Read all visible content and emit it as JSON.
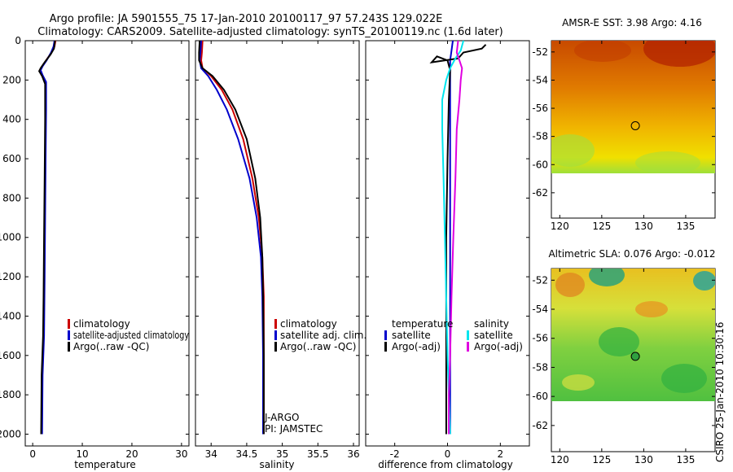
{
  "title_line1": "Argo profile: JA 5901555_75 17-Jan-2010 20100117_97 57.243S 129.022E",
  "title_line2": "Climatology: CARS2009. Satellite-adjusted climatology: synTS_20100119.nc (1.6d later)",
  "credit": "CSIRO 25-Jan-2010 10:30:16",
  "colors": {
    "red": "#cc0000",
    "blue": "#0000cc",
    "black": "#000000",
    "cyan": "#00e5ee",
    "magenta": "#e000e0"
  },
  "chart_data": [
    {
      "id": "temperature",
      "type": "line",
      "xlabel": "temperature",
      "xlim": [
        -1.5,
        31.5
      ],
      "ylim": [
        2060,
        0
      ],
      "xticks": [
        0,
        10,
        20,
        30
      ],
      "yticks": [
        0,
        200,
        400,
        600,
        800,
        1000,
        1200,
        1400,
        1600,
        1800,
        2000
      ],
      "series": [
        {
          "name": "climatology",
          "color": "red",
          "points": [
            [
              4.6,
              0
            ],
            [
              4.4,
              30
            ],
            [
              3.8,
              60
            ],
            [
              2.7,
              100
            ],
            [
              1.9,
              130
            ],
            [
              1.4,
              150
            ],
            [
              1.8,
              175
            ],
            [
              2.6,
              210
            ],
            [
              2.6,
              350
            ],
            [
              2.5,
              600
            ],
            [
              2.4,
              900
            ],
            [
              2.3,
              1200
            ],
            [
              2.2,
              1500
            ],
            [
              1.9,
              1700
            ],
            [
              1.8,
              2000
            ]
          ]
        },
        {
          "name": "satellite-adjusted climatology",
          "color": "blue",
          "points": [
            [
              4.4,
              0
            ],
            [
              4.2,
              30
            ],
            [
              3.7,
              60
            ],
            [
              2.8,
              100
            ],
            [
              2.0,
              130
            ],
            [
              1.6,
              150
            ],
            [
              2.0,
              175
            ],
            [
              2.7,
              210
            ],
            [
              2.7,
              350
            ],
            [
              2.6,
              600
            ],
            [
              2.5,
              900
            ],
            [
              2.4,
              1200
            ],
            [
              2.3,
              1500
            ],
            [
              2.0,
              1700
            ],
            [
              1.9,
              2000
            ]
          ]
        },
        {
          "name": "Argo(..raw -QC)",
          "color": "black",
          "points": [
            [
              4.5,
              0
            ],
            [
              4.3,
              40
            ],
            [
              3.6,
              70
            ],
            [
              2.4,
              110
            ],
            [
              1.6,
              140
            ],
            [
              1.3,
              155
            ],
            [
              1.9,
              180
            ],
            [
              2.5,
              220
            ],
            [
              2.5,
              400
            ],
            [
              2.4,
              700
            ],
            [
              2.3,
              1000
            ],
            [
              2.2,
              1300
            ],
            [
              2.1,
              1500
            ],
            [
              1.8,
              1700
            ],
            [
              1.7,
              2000
            ]
          ]
        }
      ],
      "legend": [
        "climatology",
        "satellite-adjusted climatology",
        "Argo(..raw -QC)"
      ]
    },
    {
      "id": "salinity",
      "type": "line",
      "xlabel": "salinity",
      "xlim": [
        33.78,
        36.08
      ],
      "ylim": [
        2060,
        0
      ],
      "xticks": [
        34,
        34.5,
        35,
        35.5,
        36
      ],
      "tick_labels": [
        "34",
        "34.5",
        "35",
        "35.5",
        "36"
      ],
      "series": [
        {
          "name": "climatology",
          "color": "red",
          "points": [
            [
              33.88,
              0
            ],
            [
              33.87,
              60
            ],
            [
              33.86,
              100
            ],
            [
              33.88,
              140
            ],
            [
              34.0,
              180
            ],
            [
              34.15,
              250
            ],
            [
              34.3,
              350
            ],
            [
              34.45,
              500
            ],
            [
              34.58,
              700
            ],
            [
              34.67,
              900
            ],
            [
              34.72,
              1100
            ],
            [
              34.74,
              1300
            ],
            [
              34.74,
              1600
            ],
            [
              34.74,
              1800
            ],
            [
              34.74,
              2000
            ]
          ]
        },
        {
          "name": "satellite adj. clim.",
          "color": "blue",
          "points": [
            [
              33.86,
              0
            ],
            [
              33.85,
              60
            ],
            [
              33.84,
              100
            ],
            [
              33.86,
              140
            ],
            [
              33.96,
              180
            ],
            [
              34.08,
              250
            ],
            [
              34.22,
              350
            ],
            [
              34.38,
              500
            ],
            [
              34.54,
              700
            ],
            [
              34.64,
              900
            ],
            [
              34.7,
              1100
            ],
            [
              34.72,
              1300
            ],
            [
              34.73,
              1600
            ],
            [
              34.73,
              1800
            ],
            [
              34.73,
              2000
            ]
          ]
        },
        {
          "name": "Argo(..raw -QC)",
          "color": "black",
          "points": [
            [
              33.84,
              0
            ],
            [
              33.83,
              60
            ],
            [
              33.83,
              100
            ],
            [
              33.88,
              140
            ],
            [
              34.02,
              180
            ],
            [
              34.18,
              250
            ],
            [
              34.34,
              350
            ],
            [
              34.5,
              500
            ],
            [
              34.62,
              700
            ],
            [
              34.69,
              900
            ],
            [
              34.72,
              1100
            ],
            [
              34.73,
              1300
            ],
            [
              34.74,
              1600
            ],
            [
              34.74,
              1800
            ],
            [
              34.74,
              2000
            ]
          ]
        }
      ],
      "legend": [
        "climatology",
        "satellite adj. clim.",
        "Argo(..raw -QC)"
      ],
      "annotations": [
        "J-ARGO",
        "PI: JAMSTEC"
      ]
    },
    {
      "id": "difference",
      "type": "line",
      "xlabel": "difference from climatology",
      "xlim": [
        -3.1,
        3.1
      ],
      "ylim": [
        2060,
        0
      ],
      "xticks": [
        -2,
        0,
        2
      ],
      "series": [
        {
          "name": "temperature satellite",
          "color": "blue",
          "points": [
            [
              0.2,
              0
            ],
            [
              0.15,
              50
            ],
            [
              0.1,
              100
            ],
            [
              0.1,
              150
            ],
            [
              0.1,
              200
            ],
            [
              0.1,
              400
            ],
            [
              0.1,
              700
            ],
            [
              0.1,
              1000
            ],
            [
              0.1,
              1300
            ],
            [
              0.1,
              1600
            ],
            [
              0.1,
              2000
            ]
          ]
        },
        {
          "name": "temperature Argo(-adj)",
          "color": "black",
          "points": [
            [
              1.45,
              20
            ],
            [
              1.3,
              40
            ],
            [
              0.6,
              60
            ],
            [
              0.4,
              90
            ],
            [
              -0.6,
              110
            ],
            [
              -0.4,
              80
            ],
            [
              0.0,
              100
            ],
            [
              0.1,
              150
            ],
            [
              0.05,
              300
            ],
            [
              0.0,
              600
            ],
            [
              -0.05,
              1000
            ],
            [
              -0.05,
              1400
            ],
            [
              -0.05,
              1800
            ],
            [
              -0.05,
              2000
            ]
          ]
        },
        {
          "name": "salinity satellite",
          "color": "cyan",
          "points": [
            [
              0.6,
              0
            ],
            [
              0.5,
              50
            ],
            [
              0.3,
              90
            ],
            [
              0.1,
              140
            ],
            [
              -0.05,
              200
            ],
            [
              -0.2,
              300
            ],
            [
              -0.2,
              450
            ],
            [
              -0.15,
              700
            ],
            [
              -0.1,
              1000
            ],
            [
              -0.05,
              1300
            ],
            [
              0.0,
              1600
            ],
            [
              0.05,
              1800
            ],
            [
              0.1,
              2000
            ]
          ]
        },
        {
          "name": "salinity Argo(-adj)",
          "color": "magenta",
          "points": [
            [
              0.4,
              0
            ],
            [
              0.35,
              60
            ],
            [
              0.45,
              100
            ],
            [
              0.55,
              140
            ],
            [
              0.5,
              200
            ],
            [
              0.45,
              300
            ],
            [
              0.35,
              450
            ],
            [
              0.3,
              700
            ],
            [
              0.22,
              1000
            ],
            [
              0.15,
              1300
            ],
            [
              0.1,
              1600
            ],
            [
              0.05,
              1800
            ],
            [
              0.05,
              2000
            ]
          ]
        }
      ],
      "legend_headers": [
        "temperature",
        "salinity"
      ],
      "legend": [
        "satellite",
        "Argo(-adj)",
        "satellite",
        "Argo(-adj)"
      ]
    },
    {
      "id": "sst_map",
      "type": "heatmap",
      "title": "AMSR-E SST: 3.98 Argo: 4.16",
      "xlim": [
        119,
        138.5
      ],
      "ylim": [
        -63.8,
        -51.2
      ],
      "xticks": [
        120,
        125,
        130,
        135
      ],
      "yticks": [
        -52,
        -54,
        -56,
        -58,
        -60,
        -62
      ],
      "data_ylim": [
        -60,
        -51.2
      ],
      "marker": [
        129.0,
        -57.24
      ]
    },
    {
      "id": "sla_map",
      "type": "heatmap",
      "title": "Altimetric SLA: 0.076 Argo: -0.012",
      "xlim": [
        119,
        138.5
      ],
      "ylim": [
        -63.8,
        -51.2
      ],
      "xticks": [
        120,
        125,
        130,
        135
      ],
      "yticks": [
        -52,
        -54,
        -56,
        -58,
        -60,
        -62
      ],
      "data_ylim": [
        -60,
        -51.2
      ],
      "marker": [
        129.0,
        -57.24
      ]
    }
  ]
}
